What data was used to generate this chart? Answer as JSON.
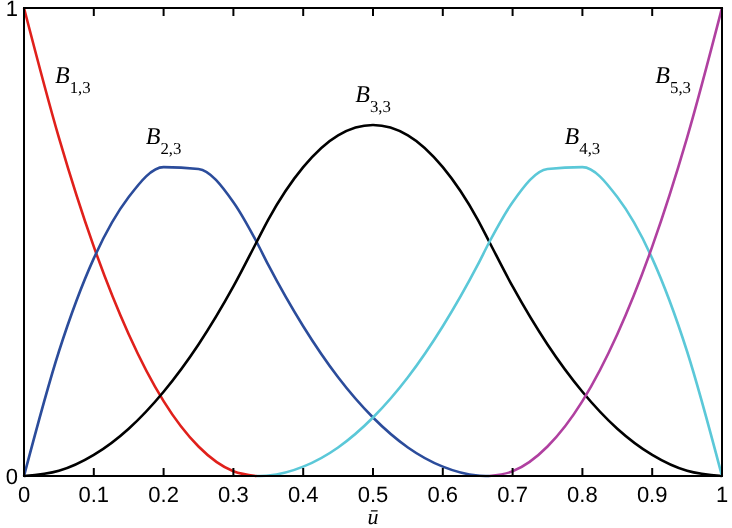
{
  "chart_data": {
    "type": "line",
    "xlabel": "ū",
    "x": [
      0,
      0.05,
      0.1,
      0.15,
      0.2,
      0.25,
      0.3,
      0.3333,
      0.35,
      0.4,
      0.45,
      0.5,
      0.55,
      0.6,
      0.65,
      0.6667,
      0.7,
      0.75,
      0.8,
      0.85,
      0.9,
      0.95,
      1
    ],
    "series": [
      {
        "color": "#e0201b",
        "values": [
          1,
          0.723,
          0.49,
          0.303,
          0.16,
          0.063,
          0.01,
          0,
          null,
          null,
          null,
          null,
          null,
          null,
          null,
          null,
          null,
          null,
          null,
          null,
          null,
          null,
          null
        ]
      },
      {
        "color": "#2b4c9b",
        "values": [
          0,
          0.266,
          0.465,
          0.596,
          0.66,
          0.656,
          0.585,
          0.5,
          0.451,
          0.32,
          0.211,
          0.125,
          0.061,
          0.02,
          0.001,
          0,
          null,
          null,
          null,
          null,
          null,
          null,
          null
        ]
      },
      {
        "color": "#000000",
        "values": [
          0,
          0.011,
          0.045,
          0.101,
          0.18,
          0.281,
          0.405,
          0.5,
          0.548,
          0.66,
          0.728,
          0.75,
          0.728,
          0.66,
          0.548,
          0.5,
          0.405,
          0.281,
          0.18,
          0.101,
          0.045,
          0.011,
          0
        ]
      },
      {
        "color": "#5bc8d8",
        "values": [
          null,
          null,
          null,
          null,
          null,
          null,
          null,
          0,
          0.001,
          0.02,
          0.061,
          0.125,
          0.211,
          0.32,
          0.451,
          0.5,
          0.585,
          0.656,
          0.66,
          0.596,
          0.465,
          0.266,
          0
        ]
      },
      {
        "color": "#b040a0",
        "values": [
          null,
          null,
          null,
          null,
          null,
          null,
          null,
          null,
          null,
          null,
          null,
          null,
          null,
          null,
          null,
          0,
          0.01,
          0.063,
          0.16,
          0.303,
          0.49,
          0.723,
          1
        ]
      }
    ],
    "annotations": [
      "B$_{1,3}$",
      "B$_{2,3}$",
      "B$_{3,3}$",
      "B$_{4,3}$",
      "B$_{5,3}$"
    ],
    "xlim": [
      0,
      1
    ],
    "ylim": [
      0,
      1
    ],
    "xticks": [
      0,
      0.1,
      0.2,
      0.3,
      0.4,
      0.5,
      0.6,
      0.7,
      0.8,
      0.9,
      1
    ],
    "yticks": [
      0,
      1
    ],
    "grid": false,
    "marker": "none",
    "line_style": "solid"
  }
}
